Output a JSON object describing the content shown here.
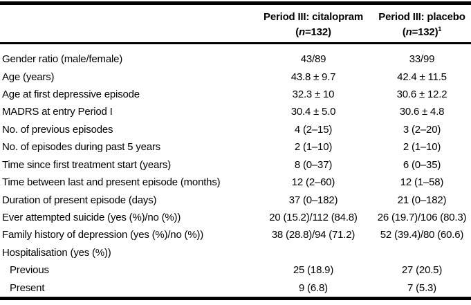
{
  "colors": {
    "text": "#000000",
    "background": "#ffffff",
    "rule": "#000000"
  },
  "header": {
    "col1": {
      "title": "Period III: citalopram",
      "paren": "(",
      "n": "n",
      "rest": "=132)",
      "sup": ""
    },
    "col2": {
      "title": "Period III: placebo",
      "paren": "(",
      "n": "n",
      "rest": "=132)",
      "sup": "1"
    }
  },
  "rows": [
    {
      "label": "Gender ratio (male/female)",
      "indent": false,
      "citalopram": "43/89",
      "placebo": "33/99"
    },
    {
      "label": "Age (years)",
      "indent": false,
      "citalopram": "43.8 ± 9.7",
      "placebo": "42.4 ± 11.5"
    },
    {
      "label": "Age at first depressive episode",
      "indent": false,
      "citalopram": "32.3 ± 10",
      "placebo": "30.6 ± 12.2"
    },
    {
      "label": "MADRS at entry Period I",
      "indent": false,
      "citalopram": "30.4 ± 5.0",
      "placebo": "30.6 ± 4.8"
    },
    {
      "label": "No. of previous episodes",
      "indent": false,
      "citalopram": "4 (2–15)",
      "placebo": "3 (2–20)"
    },
    {
      "label": "No. of episodes during past 5 years",
      "indent": false,
      "citalopram": "2 (1–10)",
      "placebo": "2 (1–10)"
    },
    {
      "label": "Time since first treatment start (years)",
      "indent": false,
      "citalopram": "8 (0–37)",
      "placebo": "6 (0–35)"
    },
    {
      "label": "Time between last and present episode (months)",
      "indent": false,
      "citalopram": "12 (2–60)",
      "placebo": "12 (1–58)"
    },
    {
      "label": "Duration of present episode (days)",
      "indent": false,
      "citalopram": "37 (0–182)",
      "placebo": "21 (0–182)"
    },
    {
      "label": "Ever attempted suicide (yes (%)/no (%))",
      "indent": false,
      "citalopram": "20 (15.2)/112 (84.8)",
      "placebo": "26 (19.7)/106 (80.3)"
    },
    {
      "label": "Family history of depression (yes (%)/no (%))",
      "indent": false,
      "citalopram": "38 (28.8)/94 (71.2)",
      "placebo": "52 (39.4)/80 (60.6)"
    },
    {
      "label": "Hospitalisation (yes (%))",
      "indent": false,
      "citalopram": "",
      "placebo": ""
    },
    {
      "label": "Previous",
      "indent": true,
      "citalopram": "25 (18.9)",
      "placebo": "27 (20.5)"
    },
    {
      "label": "Present",
      "indent": true,
      "citalopram": "9 (6.8)",
      "placebo": "7 (5.3)"
    }
  ]
}
